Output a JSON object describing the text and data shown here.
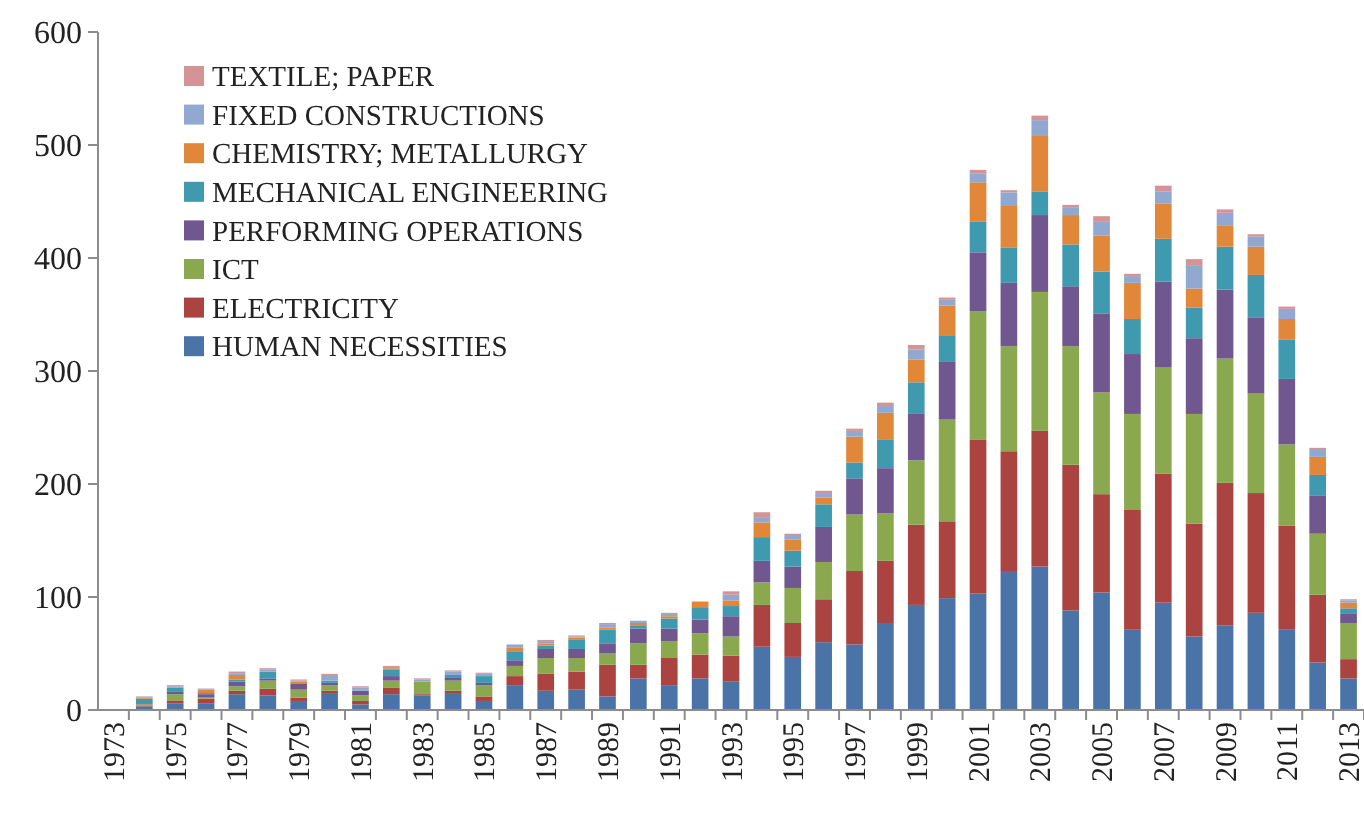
{
  "chart_data": {
    "type": "bar",
    "stacked": true,
    "legend": "top left",
    "grid": false,
    "categories": [
      "1973",
      null,
      "1975",
      null,
      "1977",
      null,
      "1979",
      null,
      "1981",
      null,
      "1983",
      null,
      "1985",
      null,
      "1987",
      null,
      "1989",
      null,
      "1991",
      null,
      "1993",
      null,
      "1995",
      null,
      "1997",
      null,
      "1999",
      null,
      "2001",
      null,
      "2003",
      null,
      "2005",
      null,
      "2007",
      null,
      "2009",
      null,
      "2011",
      null,
      "2013"
    ],
    "ylim": [
      0,
      600
    ],
    "yticks": [
      0,
      100,
      200,
      300,
      400,
      500,
      600
    ],
    "series": [
      {
        "name": "HUMAN NECESSITIES",
        "color": "#4a73a8",
        "values": [
          null,
          3,
          6,
          6,
          14,
          13,
          8,
          15,
          5,
          14,
          13,
          15,
          8,
          22,
          17,
          18,
          12,
          28,
          22,
          28,
          25,
          56,
          47,
          60,
          58,
          77,
          93,
          99,
          103,
          123,
          127,
          88,
          104,
          71,
          95,
          65,
          75,
          86,
          71,
          42,
          28
        ]
      },
      {
        "name": "ELECTRICITY",
        "color": "#ab4440",
        "values": [
          0,
          1,
          2,
          4,
          3,
          6,
          3,
          2,
          3,
          6,
          1,
          2,
          4,
          8,
          15,
          16,
          28,
          12,
          24,
          21,
          23,
          37,
          30,
          38,
          65,
          55,
          71,
          68,
          136,
          106,
          120,
          129,
          87,
          106,
          114,
          100,
          126,
          106,
          92,
          60,
          17
        ]
      },
      {
        "name": "ICT",
        "color": "#8aa84e",
        "values": [
          0,
          1,
          6,
          1,
          4,
          7,
          7,
          5,
          5,
          6,
          11,
          9,
          10,
          9,
          14,
          12,
          10,
          19,
          15,
          19,
          17,
          20,
          31,
          33,
          50,
          42,
          57,
          90,
          114,
          93,
          123,
          105,
          90,
          85,
          94,
          97,
          110,
          88,
          72,
          54,
          32
        ]
      },
      {
        "name": "PERFORMING OPERATIONS",
        "color": "#71578f",
        "values": [
          0,
          1,
          2,
          3,
          4,
          2,
          5,
          2,
          4,
          4,
          0,
          3,
          2,
          5,
          8,
          8,
          9,
          13,
          11,
          12,
          18,
          19,
          19,
          31,
          32,
          40,
          41,
          51,
          52,
          56,
          68,
          53,
          70,
          53,
          76,
          67,
          61,
          67,
          58,
          34,
          8
        ]
      },
      {
        "name": "MECHANICAL ENGINEERING",
        "color": "#3f9ab0",
        "values": [
          0,
          4,
          4,
          1,
          2,
          6,
          0,
          2,
          0,
          6,
          0,
          2,
          6,
          8,
          3,
          8,
          12,
          3,
          9,
          11,
          9,
          21,
          14,
          20,
          14,
          25,
          28,
          23,
          27,
          31,
          21,
          37,
          37,
          31,
          38,
          27,
          38,
          38,
          35,
          18,
          5
        ]
      },
      {
        "name": "CHEMISTRY; METALLURGY",
        "color": "#e0873a",
        "values": [
          0,
          1,
          0,
          3,
          4,
          0,
          2,
          0,
          0,
          1,
          0,
          0,
          0,
          3,
          2,
          2,
          2,
          2,
          2,
          5,
          5,
          13,
          10,
          6,
          23,
          24,
          20,
          27,
          35,
          37,
          49,
          26,
          32,
          32,
          31,
          17,
          19,
          25,
          18,
          16,
          5
        ]
      },
      {
        "name": "FIXED CONSTRUCTIONS",
        "color": "#91a8d0",
        "values": [
          0,
          1,
          1,
          1,
          1,
          2,
          1,
          5,
          3,
          1,
          2,
          3,
          2,
          3,
          2,
          1,
          3,
          2,
          2,
          0,
          5,
          4,
          3,
          4,
          5,
          6,
          9,
          5,
          8,
          12,
          14,
          7,
          12,
          6,
          11,
          20,
          11,
          9,
          9,
          7,
          2
        ]
      },
      {
        "name": "TEXTILE; PAPER",
        "color": "#d49394",
        "values": [
          0,
          0,
          1,
          0,
          2,
          1,
          1,
          1,
          1,
          1,
          1,
          1,
          1,
          0,
          1,
          1,
          1,
          0,
          1,
          0,
          3,
          5,
          2,
          2,
          2,
          3,
          4,
          2,
          3,
          2,
          4,
          2,
          5,
          2,
          5,
          6,
          3,
          2,
          2,
          1,
          1
        ]
      }
    ]
  }
}
